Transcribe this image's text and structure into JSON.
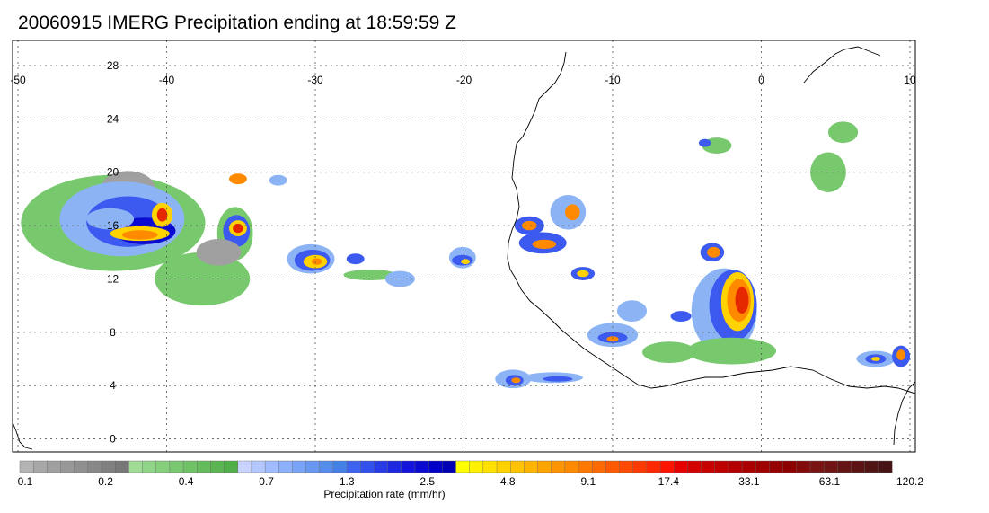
{
  "title": "20060915 IMERG Precipitation ending at 18:59:59 Z",
  "map": {
    "lon_range": [
      -50,
      10
    ],
    "lat_range": [
      -0.5,
      30
    ],
    "lon_ticks": [
      "-50",
      "-40",
      "-30",
      "-20",
      "-10",
      "0",
      "10"
    ],
    "lat_ticks": [
      "28",
      "24",
      "20",
      "16",
      "12",
      "8",
      "4",
      "0"
    ],
    "grid": true,
    "region": "West Africa / tropical Atlantic"
  },
  "colorbar": {
    "label": "Precipitation rate (mm/hr)",
    "tick_labels": [
      "0.1",
      "0.2",
      "0.4",
      "0.7",
      "1.3",
      "2.5",
      "4.8",
      "9.1",
      "17.4",
      "33.1",
      "63.1",
      "120.2"
    ],
    "colors": [
      "#b4b4b4",
      "#a8a8a8",
      "#a0a0a0",
      "#989898",
      "#909090",
      "#888888",
      "#808080",
      "#787878",
      "#a0dc96",
      "#90d488",
      "#86cf7c",
      "#7ac870",
      "#70c266",
      "#66bb5c",
      "#5cb552",
      "#52ae48",
      "#c8d4ff",
      "#b4c8ff",
      "#a0bcff",
      "#8cb0fa",
      "#7aa4f5",
      "#6898f0",
      "#568ceb",
      "#4480e6",
      "#3c64f0",
      "#3250eb",
      "#283ce6",
      "#1e28e1",
      "#1414dc",
      "#0a0ad2",
      "#0000c8",
      "#0000b4",
      "#ffff00",
      "#fff000",
      "#ffe100",
      "#ffd200",
      "#ffc300",
      "#ffb400",
      "#ffa500",
      "#ff9600",
      "#ff8a00",
      "#ff7800",
      "#ff6a00",
      "#ff5a00",
      "#ff4a00",
      "#ff3a00",
      "#ff2800",
      "#ff1400",
      "#e60000",
      "#d20000",
      "#c80000",
      "#be0000",
      "#b40000",
      "#aa0000",
      "#a00000",
      "#960000",
      "#8c0000",
      "#820a0a",
      "#781414",
      "#6e1414",
      "#641414",
      "#5a1414",
      "#501414",
      "#461414"
    ]
  },
  "precip_palette": {
    "gray": "#a0a0a0",
    "green": "#78c86e",
    "lightblue": "#8cb4f5",
    "blue": "#3c5af0",
    "darkblue": "#0a0ad2",
    "yellow": "#ffd200",
    "orange": "#ff8a00",
    "red": "#e62800"
  },
  "precip_cells": [
    {
      "lon": -43.6,
      "lat": 16.2,
      "rx": 6.2,
      "ry": 3.6,
      "level": "green"
    },
    {
      "lon": -42.6,
      "lat": 18.8,
      "rx": 1.8,
      "ry": 1.3,
      "level": "gray"
    },
    {
      "lon": -43.0,
      "lat": 16.5,
      "rx": 4.2,
      "ry": 2.8,
      "level": "lightblue"
    },
    {
      "lon": -42.6,
      "lat": 16.3,
      "rx": 2.8,
      "ry": 1.9,
      "level": "blue"
    },
    {
      "lon": -41.5,
      "lat": 15.6,
      "rx": 2.1,
      "ry": 1.0,
      "level": "darkblue"
    },
    {
      "lon": -41.8,
      "lat": 15.4,
      "rx": 2.0,
      "ry": 0.55,
      "level": "yellow"
    },
    {
      "lon": -41.8,
      "lat": 15.3,
      "rx": 1.2,
      "ry": 0.35,
      "level": "orange"
    },
    {
      "lon": -40.3,
      "lat": 16.8,
      "rx": 0.7,
      "ry": 0.9,
      "level": "yellow"
    },
    {
      "lon": -40.3,
      "lat": 16.8,
      "rx": 0.35,
      "ry": 0.5,
      "level": "red"
    },
    {
      "lon": -43.8,
      "lat": 16.5,
      "rx": 1.6,
      "ry": 0.8,
      "level": "lightblue"
    },
    {
      "lon": -35.4,
      "lat": 15.4,
      "rx": 1.2,
      "ry": 2.0,
      "level": "green"
    },
    {
      "lon": -35.3,
      "lat": 15.6,
      "rx": 0.9,
      "ry": 1.2,
      "level": "blue"
    },
    {
      "lon": -35.2,
      "lat": 15.8,
      "rx": 0.6,
      "ry": 0.6,
      "level": "yellow"
    },
    {
      "lon": -35.2,
      "lat": 15.8,
      "rx": 0.35,
      "ry": 0.35,
      "level": "red"
    },
    {
      "lon": -37.6,
      "lat": 12.0,
      "rx": 3.2,
      "ry": 2.0,
      "level": "green"
    },
    {
      "lon": -36.5,
      "lat": 14.0,
      "rx": 1.5,
      "ry": 1.0,
      "level": "gray"
    },
    {
      "lon": -30.3,
      "lat": 13.5,
      "rx": 1.6,
      "ry": 1.1,
      "level": "lightblue"
    },
    {
      "lon": -30.2,
      "lat": 13.4,
      "rx": 1.2,
      "ry": 0.8,
      "level": "blue"
    },
    {
      "lon": -30.0,
      "lat": 13.3,
      "rx": 0.8,
      "ry": 0.5,
      "level": "yellow"
    },
    {
      "lon": -29.9,
      "lat": 13.3,
      "rx": 0.35,
      "ry": 0.25,
      "level": "orange"
    },
    {
      "lon": -27.3,
      "lat": 13.5,
      "rx": 0.6,
      "ry": 0.4,
      "level": "blue"
    },
    {
      "lon": -20.1,
      "lat": 13.6,
      "rx": 0.9,
      "ry": 0.8,
      "level": "lightblue"
    },
    {
      "lon": -20.1,
      "lat": 13.4,
      "rx": 0.7,
      "ry": 0.4,
      "level": "blue"
    },
    {
      "lon": -19.9,
      "lat": 13.3,
      "rx": 0.3,
      "ry": 0.2,
      "level": "yellow"
    },
    {
      "lon": -15.6,
      "lat": 16.0,
      "rx": 1.0,
      "ry": 0.7,
      "level": "blue"
    },
    {
      "lon": -15.6,
      "lat": 16.0,
      "rx": 0.5,
      "ry": 0.35,
      "level": "orange"
    },
    {
      "lon": -13.0,
      "lat": 17.0,
      "rx": 1.2,
      "ry": 1.3,
      "level": "lightblue"
    },
    {
      "lon": -12.7,
      "lat": 17.0,
      "rx": 0.5,
      "ry": 0.6,
      "level": "orange"
    },
    {
      "lon": -14.7,
      "lat": 14.7,
      "rx": 1.6,
      "ry": 0.8,
      "level": "blue"
    },
    {
      "lon": -14.6,
      "lat": 14.6,
      "rx": 0.8,
      "ry": 0.35,
      "level": "orange"
    },
    {
      "lon": -12.0,
      "lat": 12.4,
      "rx": 0.8,
      "ry": 0.5,
      "level": "blue"
    },
    {
      "lon": -12.0,
      "lat": 12.4,
      "rx": 0.4,
      "ry": 0.25,
      "level": "yellow"
    },
    {
      "lon": -8.7,
      "lat": 9.6,
      "rx": 1.0,
      "ry": 0.8,
      "level": "lightblue"
    },
    {
      "lon": -10.0,
      "lat": 7.8,
      "rx": 1.7,
      "ry": 0.9,
      "level": "lightblue"
    },
    {
      "lon": -10.0,
      "lat": 7.6,
      "rx": 1.0,
      "ry": 0.4,
      "level": "blue"
    },
    {
      "lon": -10.0,
      "lat": 7.5,
      "rx": 0.4,
      "ry": 0.2,
      "level": "orange"
    },
    {
      "lon": -6.2,
      "lat": 6.5,
      "rx": 1.8,
      "ry": 0.8,
      "level": "green"
    },
    {
      "lon": -2.5,
      "lat": 9.6,
      "rx": 2.2,
      "ry": 3.2,
      "level": "lightblue"
    },
    {
      "lon": -1.9,
      "lat": 10.0,
      "rx": 1.6,
      "ry": 2.7,
      "level": "blue"
    },
    {
      "lon": -1.6,
      "lat": 10.3,
      "rx": 1.1,
      "ry": 2.2,
      "level": "yellow"
    },
    {
      "lon": -1.5,
      "lat": 10.4,
      "rx": 0.8,
      "ry": 1.6,
      "level": "orange"
    },
    {
      "lon": -1.3,
      "lat": 10.4,
      "rx": 0.45,
      "ry": 1.0,
      "level": "red"
    },
    {
      "lon": -3.3,
      "lat": 14.0,
      "rx": 0.8,
      "ry": 0.7,
      "level": "blue"
    },
    {
      "lon": -3.2,
      "lat": 14.0,
      "rx": 0.45,
      "ry": 0.4,
      "level": "orange"
    },
    {
      "lon": -16.7,
      "lat": 4.5,
      "rx": 1.2,
      "ry": 0.7,
      "level": "lightblue"
    },
    {
      "lon": -16.6,
      "lat": 4.4,
      "rx": 0.6,
      "ry": 0.4,
      "level": "blue"
    },
    {
      "lon": -16.5,
      "lat": 4.4,
      "rx": 0.3,
      "ry": 0.2,
      "level": "orange"
    },
    {
      "lon": -14.0,
      "lat": 4.6,
      "rx": 2.0,
      "ry": 0.4,
      "level": "lightblue"
    },
    {
      "lon": -13.7,
      "lat": 4.5,
      "rx": 1.0,
      "ry": 0.2,
      "level": "blue"
    },
    {
      "lon": 7.7,
      "lat": 6.0,
      "rx": 1.3,
      "ry": 0.6,
      "level": "lightblue"
    },
    {
      "lon": 7.7,
      "lat": 6.0,
      "rx": 0.7,
      "ry": 0.35,
      "level": "blue"
    },
    {
      "lon": 7.7,
      "lat": 6.0,
      "rx": 0.3,
      "ry": 0.15,
      "level": "yellow"
    },
    {
      "lon": 9.4,
      "lat": 6.2,
      "rx": 0.6,
      "ry": 0.8,
      "level": "blue"
    },
    {
      "lon": 9.4,
      "lat": 6.3,
      "rx": 0.3,
      "ry": 0.4,
      "level": "orange"
    },
    {
      "lon": -5.4,
      "lat": 9.2,
      "rx": 0.7,
      "ry": 0.4,
      "level": "blue"
    },
    {
      "lon": -2.0,
      "lat": 6.6,
      "rx": 3.0,
      "ry": 1.0,
      "level": "green"
    },
    {
      "lon": -26.3,
      "lat": 12.3,
      "rx": 1.8,
      "ry": 0.4,
      "level": "green"
    },
    {
      "lon": -24.3,
      "lat": 12.0,
      "rx": 1.0,
      "ry": 0.6,
      "level": "lightblue"
    },
    {
      "lon": -3.0,
      "lat": 22.0,
      "rx": 1.0,
      "ry": 0.6,
      "level": "green"
    },
    {
      "lon": -3.8,
      "lat": 22.2,
      "rx": 0.4,
      "ry": 0.3,
      "level": "blue"
    },
    {
      "lon": -35.2,
      "lat": 19.5,
      "rx": 0.6,
      "ry": 0.4,
      "level": "orange"
    },
    {
      "lon": -32.5,
      "lat": 19.4,
      "rx": 0.6,
      "ry": 0.4,
      "level": "lightblue"
    },
    {
      "lon": 4.5,
      "lat": 20.0,
      "rx": 1.2,
      "ry": 1.5,
      "level": "green"
    },
    {
      "lon": 5.5,
      "lat": 23.0,
      "rx": 1.0,
      "ry": 0.8,
      "level": "green"
    }
  ]
}
